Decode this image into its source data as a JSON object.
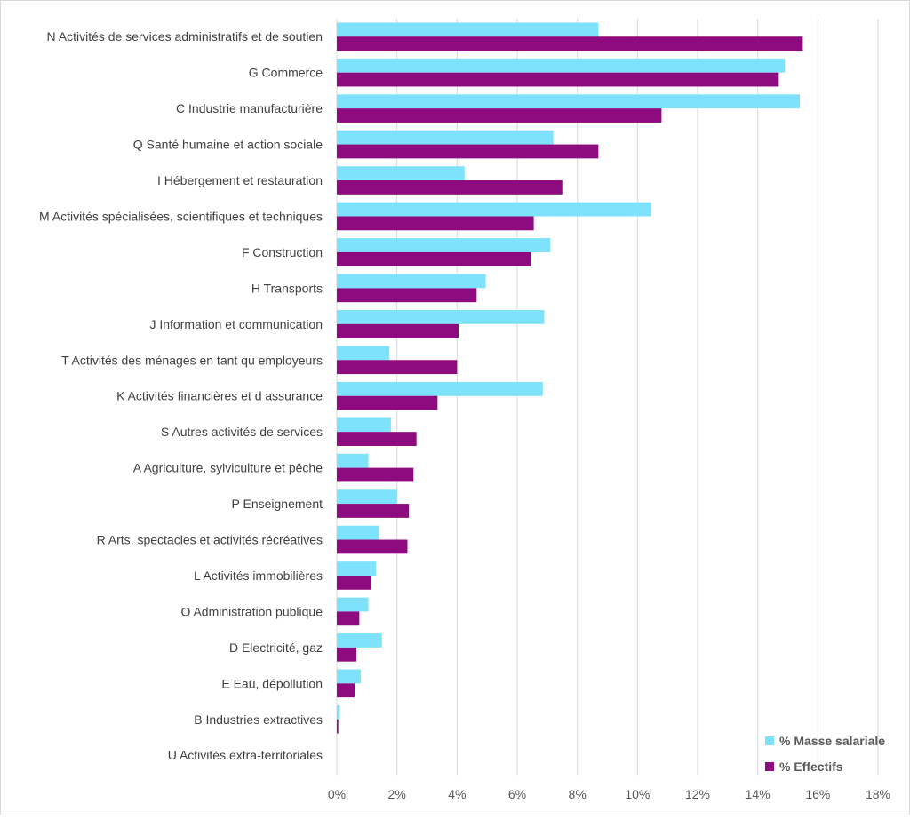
{
  "colors": {
    "masse_salariale": "#7ee2fc",
    "effectifs": "#8e0b7f",
    "gridline": "#d9d9d9",
    "text": "#404040"
  },
  "chart_data": {
    "type": "bar",
    "orientation": "horizontal",
    "title": "",
    "xlabel": "",
    "ylabel": "",
    "xlim": [
      0,
      18
    ],
    "x_ticks": [
      "0%",
      "2%",
      "4%",
      "6%",
      "8%",
      "10%",
      "12%",
      "14%",
      "16%",
      "18%"
    ],
    "grid": true,
    "legend_position": "bottom-right",
    "categories": [
      "N Activités de services administratifs et de soutien",
      "G Commerce",
      "C Industrie manufacturière",
      "Q Santé humaine et action sociale",
      "I Hébergement et restauration",
      "M Activités spécialisées, scientifiques et techniques",
      "F Construction",
      "H Transports",
      "J Information et communication",
      "T Activités des ménages en tant qu employeurs",
      "K Activités financières et d assurance",
      "S Autres activités de services",
      "A Agriculture, sylviculture et pêche",
      "P Enseignement",
      "R Arts, spectacles et activités récréatives",
      "L Activités immobilières",
      "O Administration publique",
      "D Electricité, gaz",
      "E Eau, dépollution",
      "B Industries extractives",
      "U Activités extra-territoriales"
    ],
    "series": [
      {
        "name": "% Masse salariale",
        "values": [
          8.7,
          14.9,
          15.4,
          7.2,
          4.25,
          10.45,
          7.1,
          4.95,
          6.9,
          1.75,
          6.85,
          1.8,
          1.05,
          2.0,
          1.4,
          1.3,
          1.05,
          1.5,
          0.8,
          0.1,
          0.0
        ]
      },
      {
        "name": "% Effectifs",
        "values": [
          15.5,
          14.7,
          10.8,
          8.7,
          7.5,
          6.55,
          6.45,
          4.65,
          4.05,
          4.0,
          3.35,
          2.65,
          2.55,
          2.4,
          2.35,
          1.15,
          0.75,
          0.65,
          0.6,
          0.05,
          0.0
        ]
      }
    ]
  }
}
